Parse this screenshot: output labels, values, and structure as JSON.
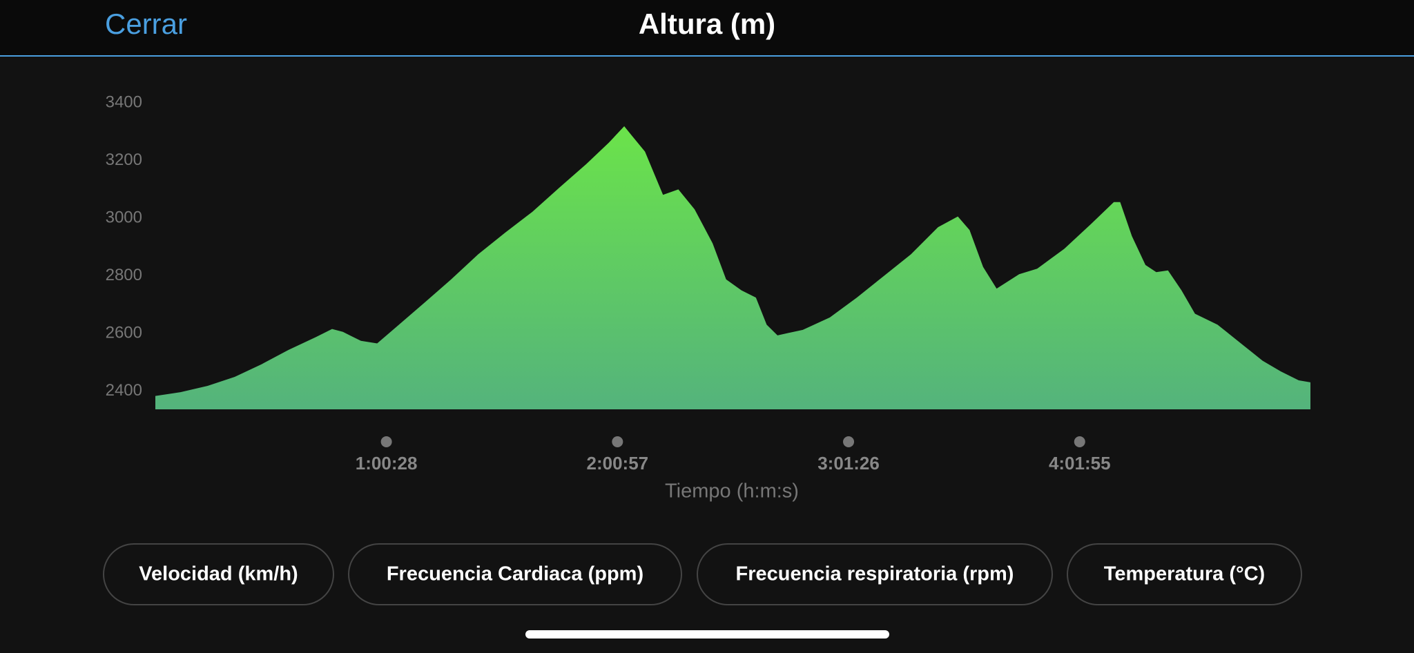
{
  "header": {
    "close": "Cerrar"
  },
  "chart_data": {
    "type": "area",
    "title": "Altura (m)",
    "x_label": "Tiempo (h:m:s)",
    "x": [
      0,
      396,
      821,
      1246,
      1670,
      2095,
      2520,
      2775,
      2945,
      3228,
      3483,
      3794,
      4220,
      4645,
      5070,
      5494,
      5919,
      6344,
      6768,
      7122,
      7363,
      7476,
      7689,
      7972,
      8213,
      8468,
      8751,
      8963,
      9204,
      9431,
      9600,
      9770,
      10167,
      10592,
      11016,
      11441,
      11866,
      12291,
      12602,
      12786,
      12999,
      13211,
      13565,
      13848,
      14273,
      14698,
      15052,
      15151,
      15335,
      15548,
      15718,
      15902,
      16114,
      16326,
      16680,
      17105,
      17388,
      17672,
      17955,
      18139
    ],
    "values": [
      2384,
      2397,
      2419,
      2450,
      2494,
      2544,
      2588,
      2616,
      2606,
      2575,
      2566,
      2625,
      2706,
      2788,
      2875,
      2950,
      3022,
      3106,
      3188,
      3262,
      3319,
      3288,
      3231,
      3081,
      3100,
      3031,
      2913,
      2788,
      2750,
      2725,
      2631,
      2594,
      2613,
      2656,
      2725,
      2800,
      2875,
      2969,
      3006,
      2959,
      2831,
      2756,
      2806,
      2825,
      2894,
      2981,
      3056,
      3056,
      2938,
      2838,
      2813,
      2819,
      2750,
      2669,
      2631,
      2556,
      2506,
      2469,
      2438,
      2431
    ],
    "gradient": [
      "#6be34a",
      "#54b37c"
    ],
    "xlim": [
      0,
      18139
    ],
    "ylim": [
      2337.5,
      3400
    ],
    "xticks": [
      {
        "value": 3628,
        "label": "1:00:28"
      },
      {
        "value": 7257,
        "label": "2:00:57"
      },
      {
        "value": 10886,
        "label": "3:01:26"
      },
      {
        "value": 14515,
        "label": "4:01:55"
      }
    ],
    "yticks": [
      2400,
      2600,
      2800,
      3000,
      3200,
      3400
    ],
    "grid": false
  },
  "buttons": [
    "Velocidad (km/h)",
    "Frecuencia Cardiaca (ppm)",
    "Frecuencia respiratoria (rpm)",
    "Temperatura (°C)"
  ]
}
